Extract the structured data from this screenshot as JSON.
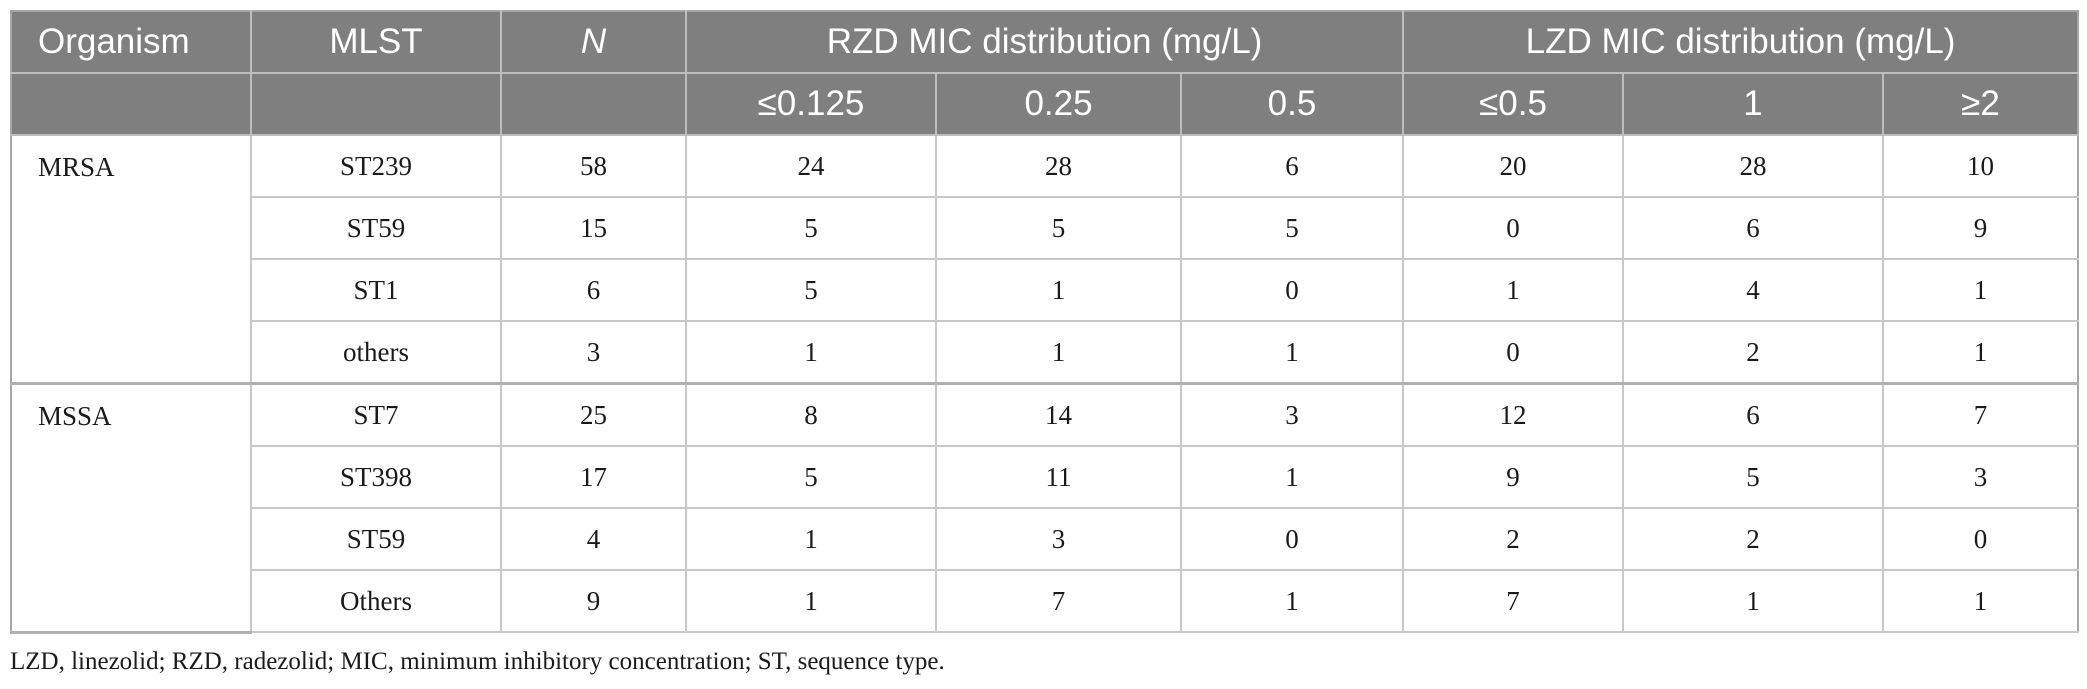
{
  "table": {
    "header_row1": {
      "organism": "Organism",
      "mlst": "MLST",
      "n": "N",
      "rzd_group": "RZD MIC distribution (mg/L)",
      "lzd_group": "LZD MIC distribution (mg/L)"
    },
    "header_row2": [
      "≤0.125",
      "0.25",
      "0.5",
      "≤0.5",
      "1",
      "≥2"
    ],
    "groups": [
      {
        "organism": "MRSA",
        "rows": [
          {
            "mlst": "ST239",
            "n": "58",
            "values": [
              "24",
              "28",
              "6",
              "20",
              "28",
              "10"
            ]
          },
          {
            "mlst": "ST59",
            "n": "15",
            "values": [
              "5",
              "5",
              "5",
              "0",
              "6",
              "9"
            ]
          },
          {
            "mlst": "ST1",
            "n": "6",
            "values": [
              "5",
              "1",
              "0",
              "1",
              "4",
              "1"
            ]
          },
          {
            "mlst": "others",
            "n": "3",
            "values": [
              "1",
              "1",
              "1",
              "0",
              "2",
              "1"
            ]
          }
        ]
      },
      {
        "organism": "MSSA",
        "rows": [
          {
            "mlst": "ST7",
            "n": "25",
            "values": [
              "8",
              "14",
              "3",
              "12",
              "6",
              "7"
            ]
          },
          {
            "mlst": "ST398",
            "n": "17",
            "values": [
              "5",
              "11",
              "1",
              "9",
              "5",
              "3"
            ]
          },
          {
            "mlst": "ST59",
            "n": "4",
            "values": [
              "1",
              "3",
              "0",
              "2",
              "2",
              "0"
            ]
          },
          {
            "mlst": "Others",
            "n": "9",
            "values": [
              "1",
              "7",
              "1",
              "7",
              "1",
              "1"
            ]
          }
        ]
      }
    ]
  },
  "footnote": "LZD, linezolid; RZD, radezolid; MIC, minimum inhibitory concentration; ST, sequence type."
}
